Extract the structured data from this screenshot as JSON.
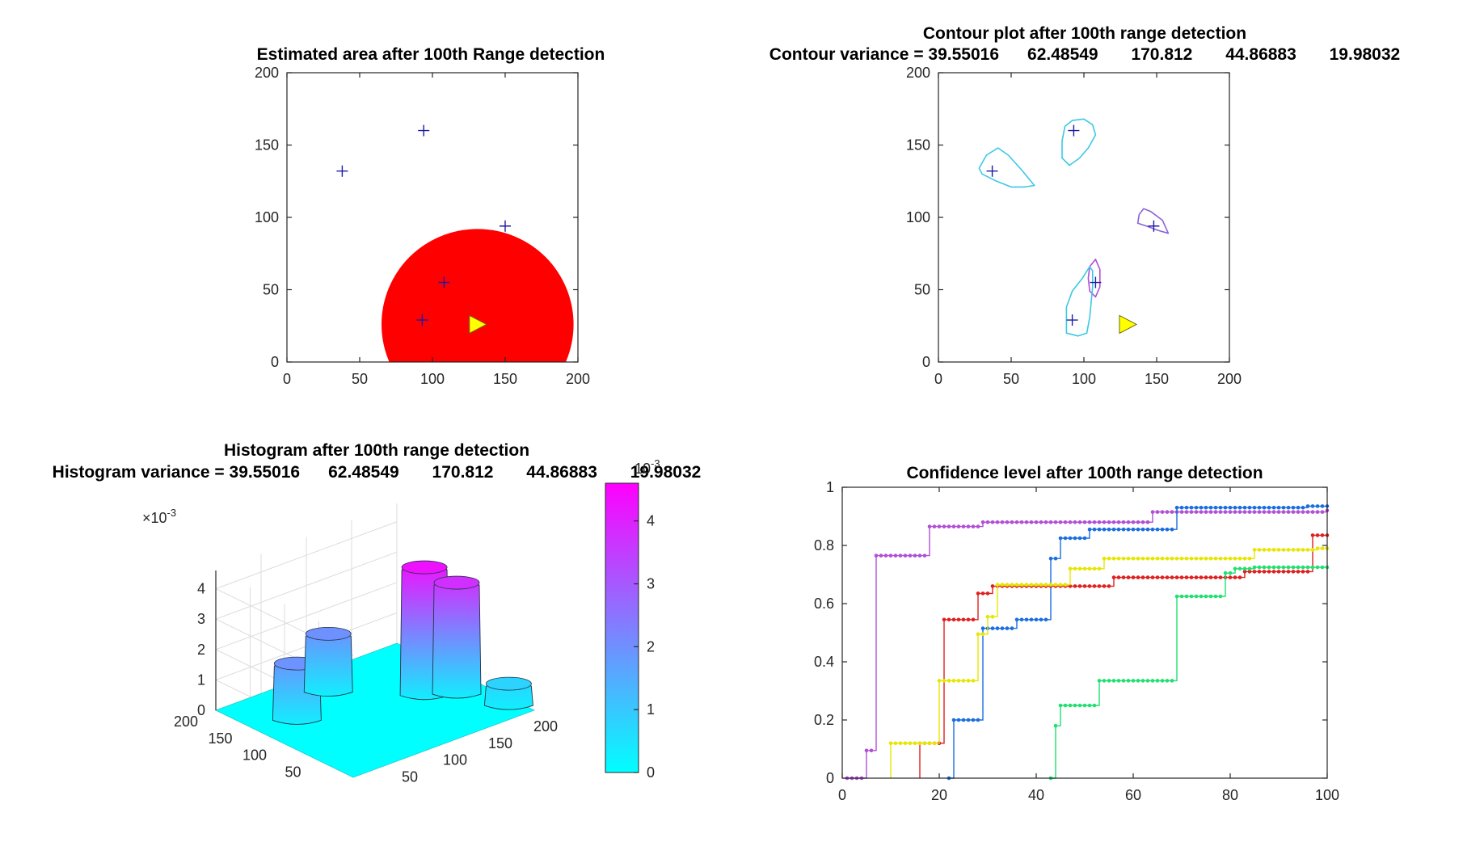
{
  "figure": {
    "background": "#ffffff"
  },
  "colors": {
    "red_area": "#ff0000",
    "marker": "#1a1aa6",
    "robot": "#ffff00",
    "contour_cyan": "#3cc8e6",
    "contour_purple": "#8a63d8",
    "contour_magenta": "#b14fd6",
    "surface_base": "#00ffff",
    "surface_peak": "#ff00ff"
  },
  "chart_data": [
    {
      "id": "estimated-area",
      "type": "scatter",
      "title": "Estimated area after 100th  Range detection",
      "xlim": [
        0,
        200
      ],
      "ylim": [
        0,
        200
      ],
      "xticks": [
        0,
        50,
        100,
        150,
        200
      ],
      "yticks": [
        0,
        50,
        100,
        150,
        200
      ],
      "grid": false,
      "targets": {
        "x": [
          38,
          94,
          150,
          108,
          93
        ],
        "y": [
          132,
          160,
          94,
          55,
          29
        ]
      },
      "robot": {
        "x": 131,
        "y": 26
      },
      "detection_area": {
        "center_x": 131,
        "center_y": 26,
        "radius": 66,
        "color": "red"
      }
    },
    {
      "id": "contour-plot",
      "type": "contour",
      "title": "Contour plot after 100th  range detection",
      "subtitle": "Contour variance = 39.55016      62.48549       170.812       44.86883       19.98032",
      "xlim": [
        0,
        200
      ],
      "ylim": [
        0,
        200
      ],
      "xticks": [
        0,
        50,
        100,
        150,
        200
      ],
      "yticks": [
        0,
        50,
        100,
        150,
        200
      ],
      "grid": false,
      "targets": {
        "x": [
          37,
          93,
          148,
          108,
          92
        ],
        "y": [
          132,
          160,
          94,
          55,
          29
        ]
      },
      "robot": {
        "x": 130,
        "y": 26
      },
      "contours": [
        {
          "color": "cyan",
          "points": [
            [
              28,
              134
            ],
            [
              33,
              143
            ],
            [
              41,
              148
            ],
            [
              48,
              143
            ],
            [
              57,
              133
            ],
            [
              66,
              122
            ],
            [
              59,
              121
            ],
            [
              50,
              121
            ],
            [
              40,
              125
            ],
            [
              30,
              130
            ]
          ]
        },
        {
          "color": "cyan",
          "points": [
            [
              87,
              163
            ],
            [
              92,
              167
            ],
            [
              100,
              168
            ],
            [
              106,
              164
            ],
            [
              108,
              157
            ],
            [
              103,
              148
            ],
            [
              97,
              141
            ],
            [
              90,
              136
            ],
            [
              85,
              141
            ],
            [
              85,
              153
            ]
          ]
        },
        {
          "color": "purple",
          "points": [
            [
              141,
              106
            ],
            [
              146,
              104
            ],
            [
              154,
              98
            ],
            [
              158,
              89
            ],
            [
              151,
              91
            ],
            [
              143,
              94
            ],
            [
              137,
              96
            ],
            [
              138,
              102
            ]
          ]
        },
        {
          "color": "magenta",
          "points": [
            [
              104,
              66
            ],
            [
              108,
              71
            ],
            [
              111,
              64
            ],
            [
              111,
              52
            ],
            [
              108,
              45
            ],
            [
              104,
              49
            ],
            [
              103,
              58
            ]
          ]
        },
        {
          "color": "cyan",
          "points": [
            [
              88,
              20
            ],
            [
              96,
              18
            ],
            [
              102,
              20
            ],
            [
              104,
              31
            ],
            [
              106,
              52
            ],
            [
              106,
              63
            ],
            [
              104,
              66
            ],
            [
              99,
              58
            ],
            [
              92,
              49
            ],
            [
              88,
              38
            ],
            [
              88,
              28
            ]
          ]
        }
      ]
    },
    {
      "id": "histogram-surface",
      "type": "surface3d",
      "title": "Histogram after 100th  range detection",
      "subtitle": "Histogram variance = 39.55016      62.48549       170.812       44.86883       19.98032",
      "z_exponent_label": "×10",
      "z_exponent_power": "-3",
      "xticks": [
        50,
        100,
        150,
        200
      ],
      "yticks": [
        50,
        100,
        150,
        200
      ],
      "zticks": [
        0,
        1,
        2,
        3,
        4
      ],
      "colorbar": {
        "ticks": [
          0,
          1,
          2,
          3,
          4
        ],
        "max": 4.6,
        "exponent_label": "10",
        "exponent_power": "-3"
      },
      "peaks": [
        {
          "x": 38,
          "y": 132,
          "height": 1.95
        },
        {
          "x": 94,
          "y": 160,
          "height": 2.0
        },
        {
          "x": 150,
          "y": 94,
          "height": 4.3
        },
        {
          "x": 172,
          "y": 76,
          "height": 3.75
        },
        {
          "x": 190,
          "y": 24,
          "height": 0.8
        }
      ]
    },
    {
      "id": "confidence-level",
      "type": "line",
      "title": "Confidence level after 100th  range detection",
      "xlim": [
        0,
        100
      ],
      "ylim": [
        0,
        1
      ],
      "xticks": [
        0,
        20,
        40,
        60,
        80,
        100
      ],
      "yticks": [
        0,
        0.2,
        0.4,
        0.6,
        0.8,
        1
      ],
      "grid": false,
      "series": [
        {
          "color": "#b14fd6",
          "steps": [
            [
              1,
              0
            ],
            [
              5,
              0.095
            ],
            [
              7,
              0.765
            ],
            [
              18,
              0.865
            ],
            [
              29,
              0.88
            ],
            [
              64,
              0.915
            ],
            [
              100,
              0.92
            ]
          ]
        },
        {
          "color": "#1a6ee0",
          "steps": [
            [
              22,
              0
            ],
            [
              23,
              0.2
            ],
            [
              29,
              0.515
            ],
            [
              36,
              0.545
            ],
            [
              43,
              0.755
            ],
            [
              45,
              0.825
            ],
            [
              51,
              0.855
            ],
            [
              69,
              0.93
            ],
            [
              96,
              0.935
            ],
            [
              100,
              0.935
            ]
          ]
        },
        {
          "color": "#e02020",
          "steps": [
            [
              16,
              0
            ],
            [
              16,
              0.12
            ],
            [
              21,
              0.545
            ],
            [
              28,
              0.635
            ],
            [
              31,
              0.66
            ],
            [
              56,
              0.69
            ],
            [
              83,
              0.71
            ],
            [
              97,
              0.835
            ],
            [
              100,
              0.835
            ]
          ]
        },
        {
          "color": "#e6e600",
          "steps": [
            [
              10,
              0
            ],
            [
              10,
              0.12
            ],
            [
              20,
              0.335
            ],
            [
              28,
              0.495
            ],
            [
              30,
              0.555
            ],
            [
              32,
              0.665
            ],
            [
              47,
              0.72
            ],
            [
              54,
              0.755
            ],
            [
              85,
              0.785
            ],
            [
              98,
              0.79
            ],
            [
              100,
              0.79
            ]
          ]
        },
        {
          "color": "#20e070",
          "steps": [
            [
              43,
              0
            ],
            [
              44,
              0.18
            ],
            [
              45,
              0.25
            ],
            [
              53,
              0.335
            ],
            [
              69,
              0.625
            ],
            [
              79,
              0.705
            ],
            [
              81,
              0.72
            ],
            [
              85,
              0.725
            ],
            [
              100,
              0.725
            ]
          ]
        }
      ]
    }
  ]
}
